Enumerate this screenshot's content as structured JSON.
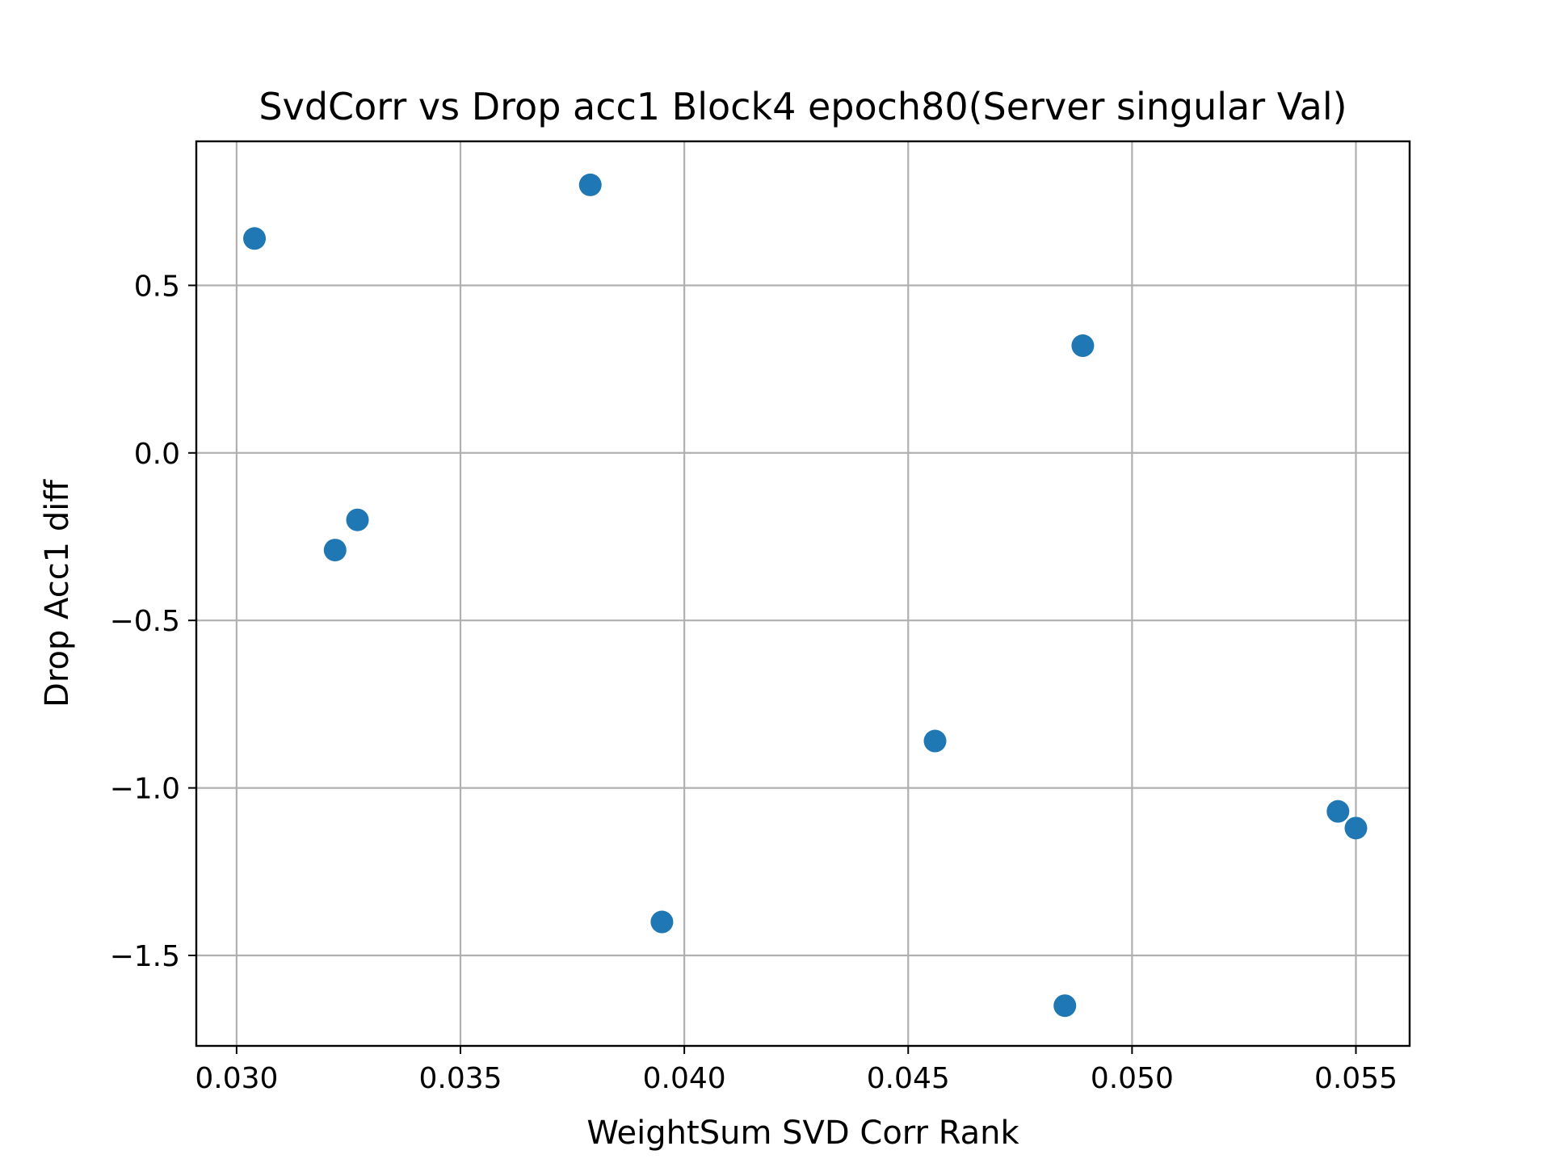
{
  "chart_data": {
    "type": "scatter",
    "title": "SvdCorr vs Drop acc1 Block4 epoch80(Server singular Val)",
    "xlabel": "WeightSum SVD Corr Rank",
    "ylabel": "Drop Acc1 diff",
    "xlim": [
      0.0291,
      0.0562
    ],
    "ylim": [
      -1.77,
      0.93
    ],
    "xticks": [
      0.03,
      0.035,
      0.04,
      0.045,
      0.05,
      0.055
    ],
    "xtick_labels": [
      "0.030",
      "0.035",
      "0.040",
      "0.045",
      "0.050",
      "0.055"
    ],
    "yticks": [
      0.5,
      0.0,
      -0.5,
      -1.0,
      -1.5
    ],
    "ytick_labels": [
      "0.5",
      "0.0",
      "−0.5",
      "−1.0",
      "−1.5"
    ],
    "grid": true,
    "marker_color": "#1f77b4",
    "points": [
      {
        "x": 0.0304,
        "y": 0.64
      },
      {
        "x": 0.0379,
        "y": 0.8
      },
      {
        "x": 0.0489,
        "y": 0.32
      },
      {
        "x": 0.0327,
        "y": -0.2
      },
      {
        "x": 0.0322,
        "y": -0.29
      },
      {
        "x": 0.0456,
        "y": -0.86
      },
      {
        "x": 0.0546,
        "y": -1.07
      },
      {
        "x": 0.055,
        "y": -1.12
      },
      {
        "x": 0.0395,
        "y": -1.4
      },
      {
        "x": 0.0485,
        "y": -1.65
      }
    ]
  }
}
